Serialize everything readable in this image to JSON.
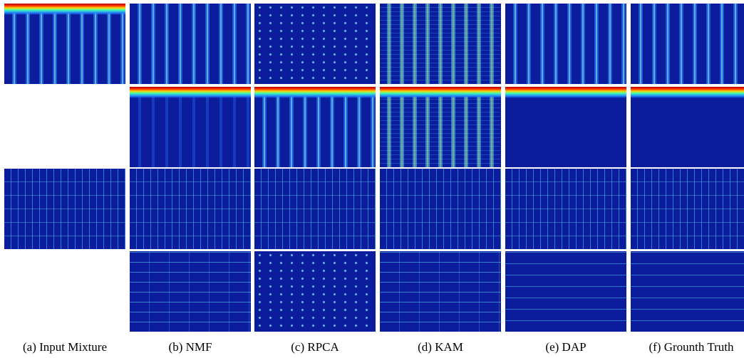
{
  "captions": [
    "(a) Input Mixture",
    "(b) NMF",
    "(c) RPCA",
    "(d) KAM",
    "(e) DAP",
    "(f) Grounth Truth"
  ]
}
